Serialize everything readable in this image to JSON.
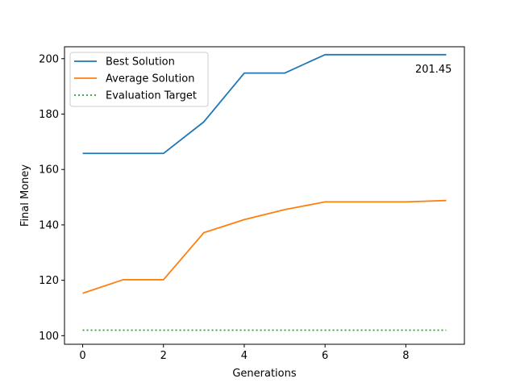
{
  "chart_data": {
    "type": "line",
    "xlabel": "Generations",
    "ylabel": "Final Money",
    "xlim": [
      -0.45,
      9.45
    ],
    "ylim": [
      96.9,
      204.3
    ],
    "xticks": [
      0,
      2,
      4,
      6,
      8
    ],
    "yticks": [
      100,
      120,
      140,
      160,
      180,
      200
    ],
    "grid": false,
    "legend_position": "upper left",
    "x": [
      0,
      1,
      2,
      3,
      4,
      5,
      6,
      7,
      8,
      9
    ],
    "series": [
      {
        "name": "Best Solution",
        "color": "#1f77b4",
        "style": "solid",
        "values": [
          165.8,
          165.8,
          165.8,
          177.2,
          194.8,
          194.8,
          201.45,
          201.45,
          201.45,
          201.45
        ]
      },
      {
        "name": "Average Solution",
        "color": "#ff7f0e",
        "style": "solid",
        "values": [
          115.3,
          120.2,
          120.2,
          137.2,
          141.9,
          145.5,
          148.3,
          148.3,
          148.3,
          148.8
        ]
      },
      {
        "name": "Evaluation Target",
        "color": "#2ca02c",
        "style": "dotted",
        "values": [
          102,
          102,
          102,
          102,
          102,
          102,
          102,
          102,
          102,
          102
        ]
      }
    ],
    "annotations": [
      {
        "text": "201.45",
        "x": 9,
        "y": 201.45
      }
    ]
  }
}
